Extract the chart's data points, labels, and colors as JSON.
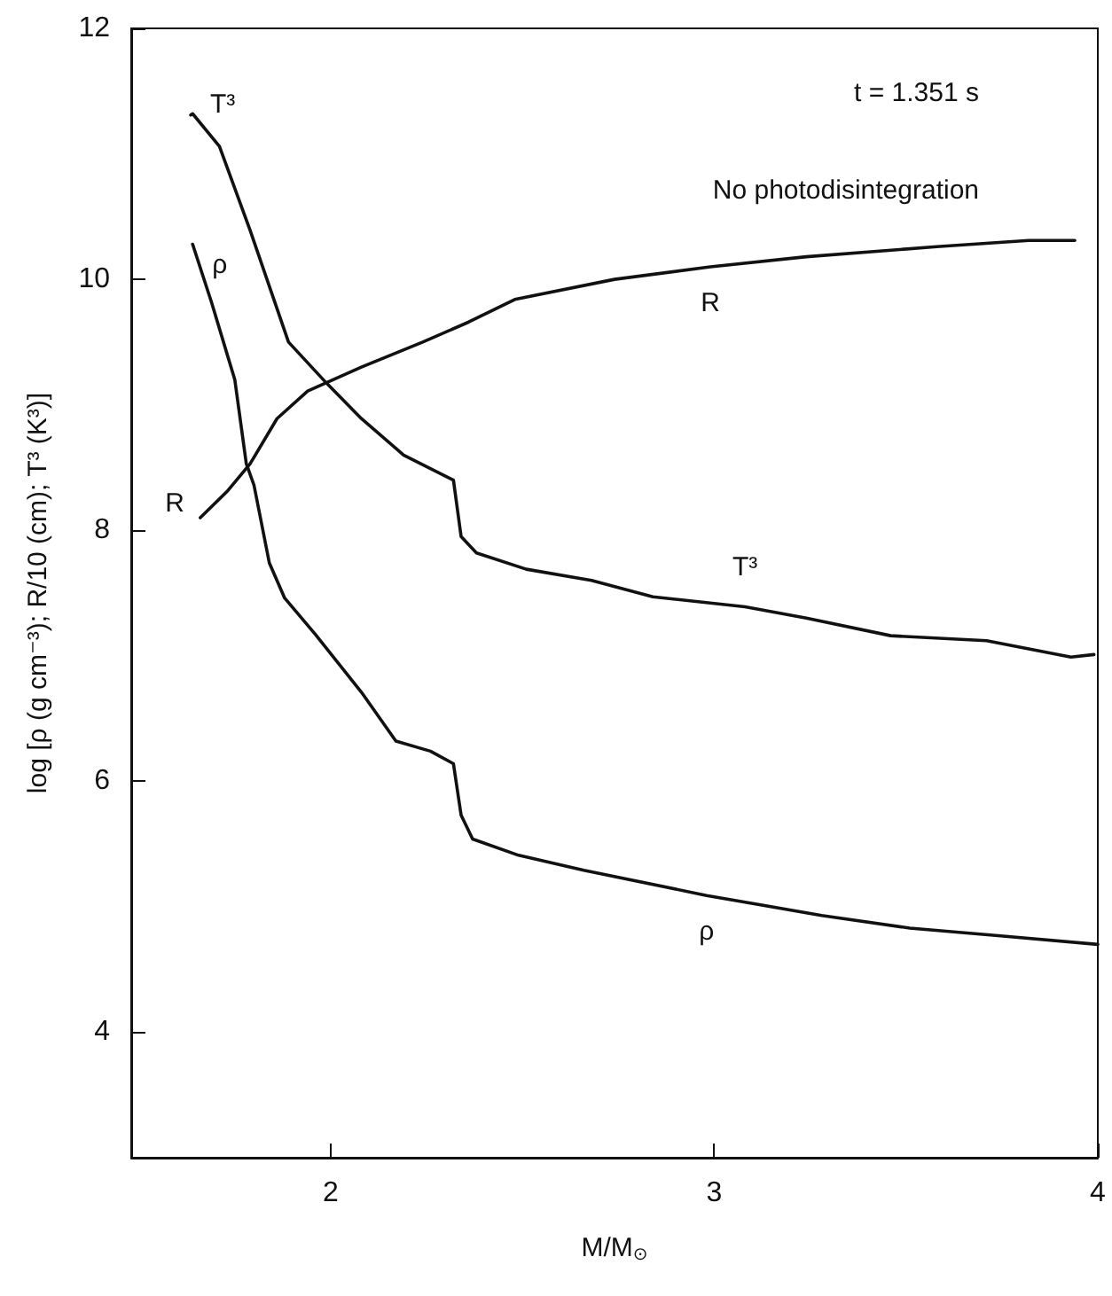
{
  "chart_data": {
    "type": "line",
    "xlabel": "M/M$_{⊙}$",
    "ylabel": "log [ρ (g cm⁻³); R/10 (cm); T³ (K³)]",
    "xlim": [
      1.48,
      4
    ],
    "xticks": [
      2,
      3,
      4
    ],
    "ylim": [
      3,
      12
    ],
    "yticks": [
      4,
      6,
      8,
      10,
      12
    ],
    "grid": false,
    "legend": false,
    "marker": "none",
    "line_style": "solid",
    "annotations": [
      "t = 1.351 s",
      "No photodisintegration"
    ],
    "series": [
      {
        "name": "T³",
        "color": "#111111",
        "x": [
          1.635,
          1.64,
          1.71,
          1.79,
          1.89,
          1.99,
          2.08,
          2.19,
          2.32,
          2.34,
          2.38,
          2.51,
          2.68,
          2.84,
          3.08,
          3.24,
          3.46,
          3.71,
          3.93,
          3.99
        ],
        "values": [
          11.31,
          11.32,
          11.06,
          10.39,
          9.5,
          9.17,
          8.89,
          8.6,
          8.4,
          7.95,
          7.82,
          7.69,
          7.6,
          7.47,
          7.39,
          7.3,
          7.16,
          7.12,
          6.99,
          7.01
        ]
      },
      {
        "name": "ρ",
        "color": "#111111",
        "x": [
          1.64,
          1.69,
          1.75,
          1.78,
          1.8,
          1.84,
          1.88,
          1.96,
          2.08,
          2.17,
          2.26,
          2.32,
          2.34,
          2.37,
          2.49,
          2.66,
          2.98,
          3.28,
          3.51,
          3.74,
          4.0
        ],
        "values": [
          10.28,
          9.81,
          9.2,
          8.53,
          8.36,
          7.74,
          7.46,
          7.17,
          6.71,
          6.32,
          6.24,
          6.14,
          5.73,
          5.54,
          5.41,
          5.29,
          5.09,
          4.93,
          4.83,
          4.77,
          4.7
        ]
      },
      {
        "name": "R",
        "color": "#111111",
        "x": [
          1.66,
          1.73,
          1.79,
          1.86,
          1.94,
          2.08,
          2.24,
          2.36,
          2.48,
          2.74,
          2.99,
          3.24,
          3.58,
          3.82,
          3.94
        ],
        "values": [
          8.1,
          8.31,
          8.53,
          8.89,
          9.11,
          9.3,
          9.5,
          9.66,
          9.84,
          10.0,
          10.1,
          10.18,
          10.26,
          10.31,
          10.31
        ]
      }
    ]
  }
}
